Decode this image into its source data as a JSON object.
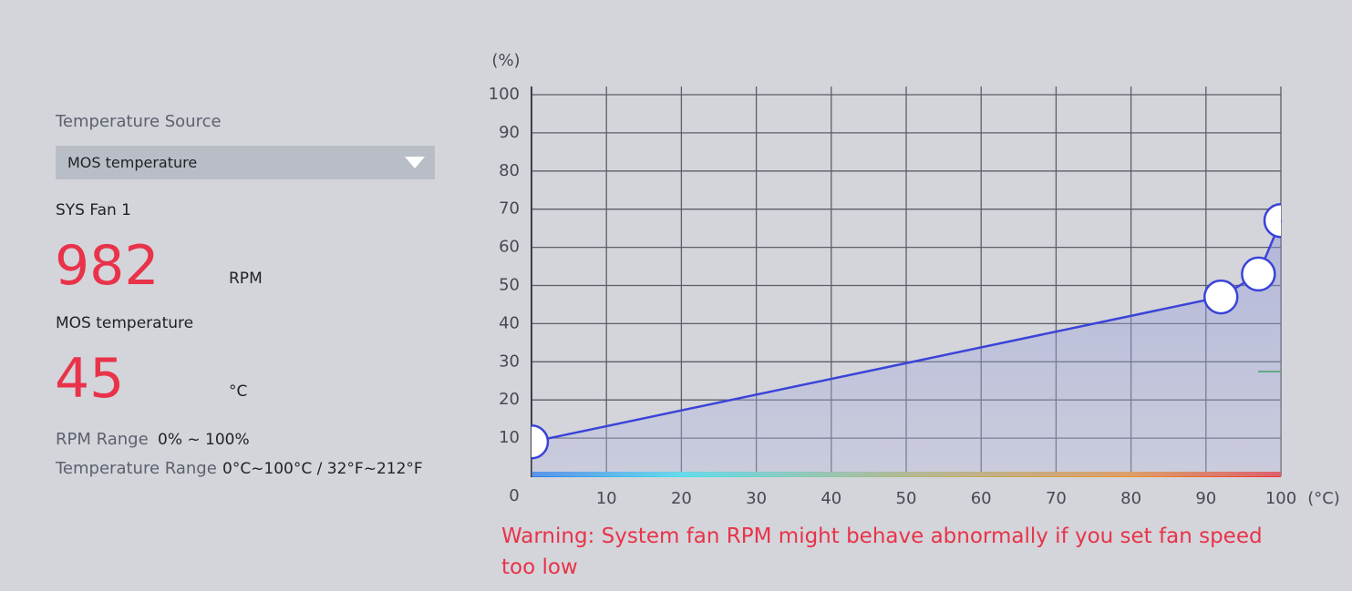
{
  "panel": {
    "source_label": "Temperature Source",
    "source_value": "MOS temperature",
    "fan_name": "SYS Fan 1",
    "rpm": 982,
    "rpm_unit": "RPM",
    "temp_label": "MOS temperature",
    "temp": 45,
    "temp_unit": "°C",
    "rpm_range_label": "RPM Range",
    "rpm_range": "0% ~ 100%",
    "temp_range_label": "Temperature Range",
    "temp_range": "0°C~100°C / 32°F~212°F"
  },
  "chart_data": {
    "type": "line",
    "y_unit": "(%)",
    "x_unit": "(°C)",
    "x": [
      0,
      92,
      97,
      100
    ],
    "values": [
      9,
      47,
      53,
      67
    ],
    "color": "#3a44d8",
    "xlim": [
      0,
      100
    ],
    "ylim": [
      0,
      100
    ],
    "xticks": [
      0,
      10,
      20,
      30,
      40,
      50,
      60,
      70,
      80,
      90,
      100
    ],
    "yticks": [
      10,
      20,
      30,
      40,
      50,
      60,
      70,
      80,
      90,
      100
    ],
    "grid": true,
    "warning": "Warning: System fan RPM might behave abnormally if you set fan speed too low"
  }
}
